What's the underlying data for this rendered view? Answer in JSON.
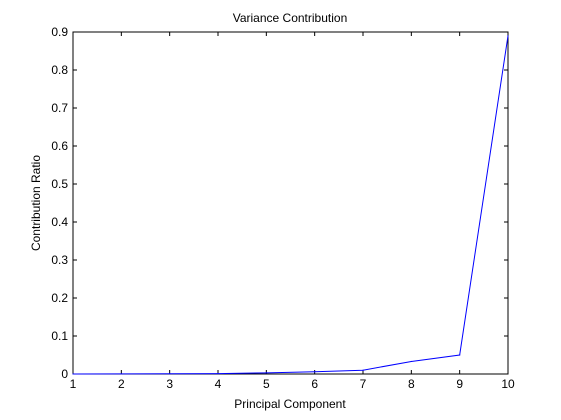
{
  "chart_data": {
    "type": "line",
    "title": "Variance Contribution",
    "xlabel": "Principal Component",
    "ylabel": "Contribution Ratio",
    "xlim": [
      1,
      10
    ],
    "ylim": [
      0,
      0.9
    ],
    "x_ticks": [
      1,
      2,
      3,
      4,
      5,
      6,
      7,
      8,
      9,
      10
    ],
    "y_ticks": [
      "0",
      "0.1",
      "0.2",
      "0.3",
      "0.4",
      "0.5",
      "0.6",
      "0.7",
      "0.8",
      "0.9"
    ],
    "grid": false,
    "legend": false,
    "series": [
      {
        "color": "#0000ff",
        "x": [
          1,
          2,
          3,
          4,
          5,
          6,
          7,
          8,
          9,
          10
        ],
        "values": [
          0.0001,
          0.0003,
          0.0006,
          0.001,
          0.003,
          0.006,
          0.01,
          0.033,
          0.05,
          0.89
        ]
      }
    ]
  }
}
